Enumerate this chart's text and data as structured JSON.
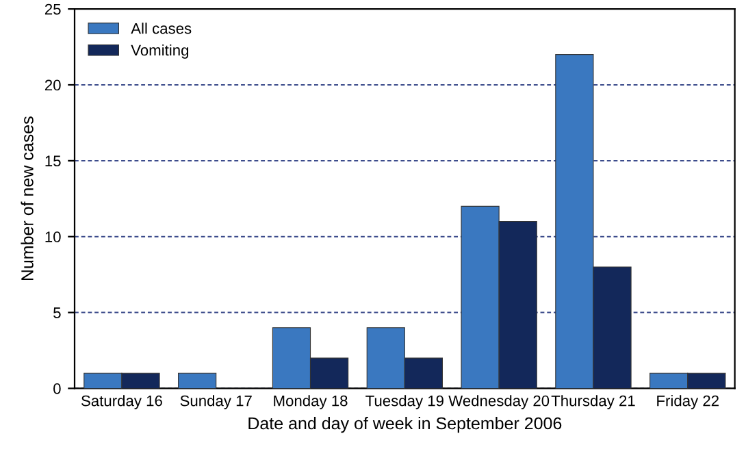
{
  "chart_data": {
    "type": "bar",
    "xlabel": "Date and day of week in September 2006",
    "ylabel": "Number of new cases",
    "categories": [
      "Saturday 16",
      "Sunday 17",
      "Monday 18",
      "Tuesday 19",
      "Wednesday 20",
      "Thursday 21",
      "Friday 22"
    ],
    "series": [
      {
        "name": "All cases",
        "color": "#3a78c0",
        "values": [
          1,
          1,
          4,
          4,
          12,
          22,
          1
        ]
      },
      {
        "name": "Vomiting",
        "color": "#13285a",
        "values": [
          1,
          0,
          2,
          2,
          11,
          8,
          1
        ]
      }
    ],
    "ylim": [
      0,
      25
    ],
    "yticks": [
      0,
      5,
      10,
      15,
      20,
      25
    ],
    "grid": "y",
    "legend": "top left"
  }
}
